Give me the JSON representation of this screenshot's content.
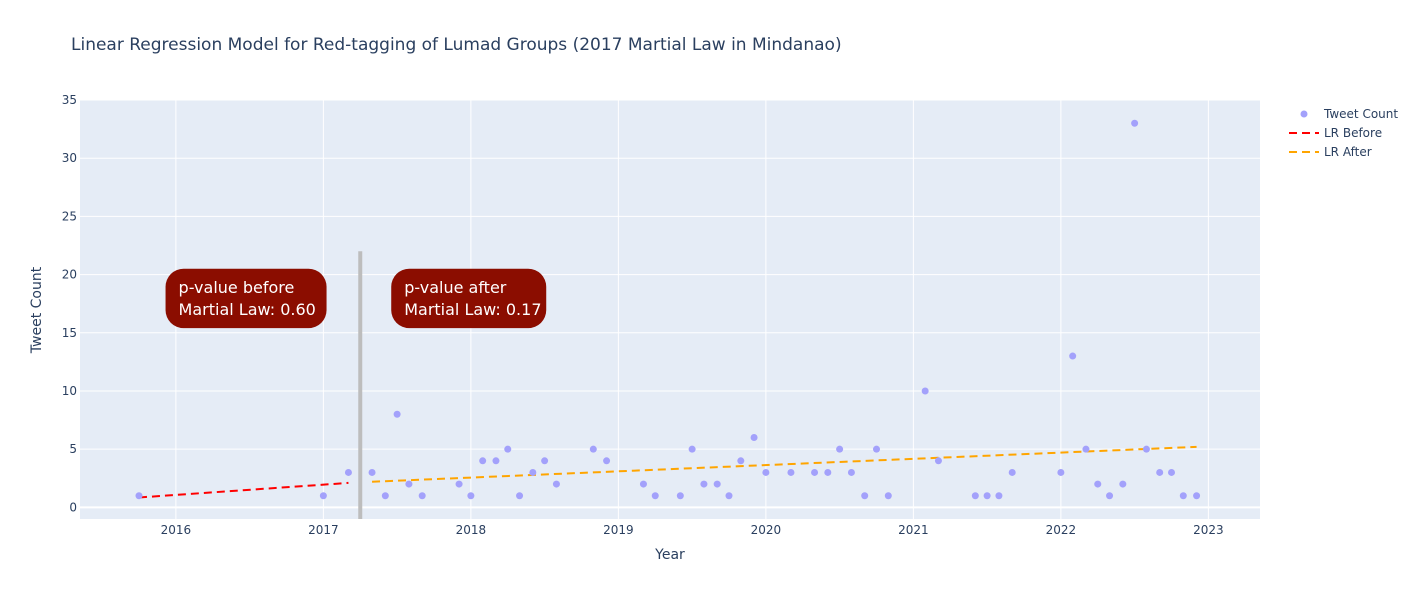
{
  "chart_data": {
    "type": "scatter",
    "title": "Linear Regression Model for Red-tagging of Lumad Groups (2017 Martial Law in Mindanao)",
    "xlabel": "Year",
    "ylabel": "Tweet Count",
    "xlim": [
      2015.35,
      2023.35
    ],
    "ylim": [
      -1,
      35
    ],
    "x_ticks": [
      2016,
      2017,
      2018,
      2019,
      2020,
      2021,
      2022,
      2023
    ],
    "y_ticks": [
      0,
      5,
      10,
      15,
      20,
      25,
      30,
      35
    ],
    "grid": true,
    "legend_position": "top-right",
    "colors": {
      "plot_bg": "#e5ecf6",
      "grid": "#ffffff",
      "points": "#a3a1fb",
      "lr_before": "#ff0000",
      "lr_after": "#ffa500",
      "vline": "#bdbdbd",
      "annotation_bg": "#8b0d00"
    },
    "series": [
      {
        "name": "Tweet Count",
        "kind": "markers",
        "x": [
          2015.75,
          2017.0,
          2017.17,
          2017.33,
          2017.42,
          2017.5,
          2017.58,
          2017.67,
          2017.92,
          2018.0,
          2018.08,
          2018.17,
          2018.25,
          2018.33,
          2018.42,
          2018.5,
          2018.58,
          2018.83,
          2018.92,
          2019.17,
          2019.25,
          2019.42,
          2019.5,
          2019.58,
          2019.67,
          2019.75,
          2019.83,
          2019.92,
          2020.0,
          2020.17,
          2020.33,
          2020.42,
          2020.5,
          2020.58,
          2020.67,
          2020.75,
          2020.83,
          2021.08,
          2021.17,
          2021.42,
          2021.5,
          2021.58,
          2021.67,
          2022.0,
          2022.08,
          2022.17,
          2022.25,
          2022.33,
          2022.42,
          2022.5,
          2022.58,
          2022.67,
          2022.75,
          2022.83,
          2022.92
        ],
        "y": [
          1,
          1,
          3,
          3,
          1,
          8,
          2,
          1,
          2,
          1,
          4,
          4,
          5,
          1,
          3,
          4,
          2,
          5,
          4,
          2,
          1,
          1,
          5,
          2,
          2,
          1,
          4,
          6,
          3,
          3,
          3,
          3,
          5,
          3,
          1,
          5,
          1,
          10,
          4,
          1,
          1,
          1,
          3,
          3,
          13,
          5,
          2,
          1,
          2,
          33,
          5,
          3,
          3,
          1,
          1
        ]
      },
      {
        "name": "LR Before",
        "kind": "dashed-line",
        "x": [
          2015.75,
          2017.17
        ],
        "y": [
          0.85,
          2.1
        ]
      },
      {
        "name": "LR After",
        "kind": "dashed-line",
        "x": [
          2017.33,
          2022.92
        ],
        "y": [
          2.2,
          5.2
        ]
      }
    ],
    "vline": {
      "x": 2017.25,
      "y_top": 22,
      "y_bottom": -1
    },
    "annotations": [
      {
        "line1": "p-value before",
        "line2": "Martial Law: 0.60",
        "x_left": 2015.93,
        "y_top": 20.5,
        "y_bottom": 15.4
      },
      {
        "line1": "p-value after",
        "line2": "Martial Law: 0.17",
        "x_left": 2017.46,
        "y_top": 20.5,
        "y_bottom": 15.4
      }
    ]
  }
}
